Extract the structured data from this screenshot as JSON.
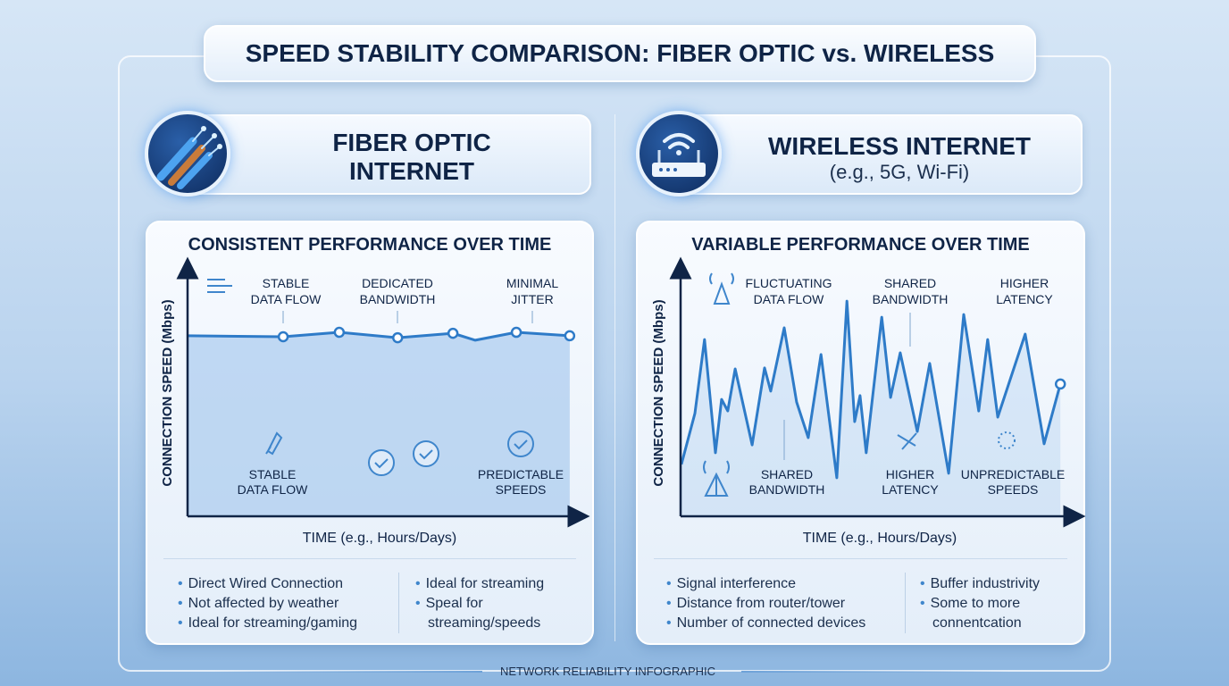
{
  "title": "SPEED STABILITY COMPARISON: FIBER OPTIC vs. WIRELESS",
  "fiber": {
    "header_line1": "FIBER OPTIC",
    "header_line2": "INTERNET",
    "icon": "fiber-cable-icon",
    "bullets_left": [
      "Direct Wired Connection",
      "Not affected by weather",
      "Ideal for streaming/gaming"
    ],
    "bullets_right": [
      "Ideal for streaming",
      "Speal for"
    ],
    "bullets_right_cont": "streaming/speeds"
  },
  "wireless": {
    "header_line1": "WIRELESS INTERNET",
    "header_line2": "(e.g., 5G, Wi-Fi)",
    "icon": "router-wifi-icon",
    "bullets_left": [
      "Signal interference",
      "Distance from router/tower",
      "Number of connected devices"
    ],
    "bullets_right": [
      "Buffer industrivity",
      "Some to more"
    ],
    "bullets_right_cont": "connentcation"
  },
  "footer": "NETWORK RELIABILITY INFOGRAPHIC",
  "colors": {
    "line": "#2e7bc8",
    "axis": "#0f2446",
    "fill": "#a9cbee"
  },
  "chart_data": [
    {
      "type": "line",
      "title": "CONSISTENT PERFORMANCE OVER TIME",
      "xlabel": "TIME (e.g., Hours/Days)",
      "ylabel": "CONNECTION SPEED (Mbps)",
      "xlim": [
        0,
        100
      ],
      "ylim": [
        0,
        100
      ],
      "grid": false,
      "series": [
        {
          "name": "Fiber Optic",
          "x": [
            0,
            24.9,
            39.5,
            54.7,
            69.1,
            74.9,
            85.6,
            99.5
          ],
          "y": [
            72.6,
            72.2,
            74.0,
            71.8,
            73.6,
            70.8,
            74.0,
            72.6
          ],
          "markers": [
            false,
            true,
            true,
            true,
            true,
            false,
            true,
            true
          ]
        }
      ],
      "annotations": [
        {
          "l1": "STABLE",
          "l2": "DATA FLOW"
        },
        {
          "l1": "DEDICATED",
          "l2": "BANDWIDTH"
        },
        {
          "l1": "MINIMAL",
          "l2": "JITTER"
        },
        {
          "l1": "STABLE",
          "l2": "DATA FLOW"
        },
        {
          "l1": "PREDICTABLE",
          "l2": "SPEEDS"
        }
      ]
    },
    {
      "type": "line",
      "title": "VARIABLE PERFORMANCE OVER TIME",
      "xlabel": "TIME (e.g., Hours/Days)",
      "ylabel": "CONNECTION SPEED (Mbps)",
      "xlim": [
        0,
        100
      ],
      "ylim": [
        0,
        100
      ],
      "grid": false,
      "series": [
        {
          "name": "Wireless",
          "x": [
            0.2,
            3.7,
            6.2,
            9.0,
            10.6,
            12.2,
            14.1,
            18.5,
            21.7,
            23.3,
            26.8,
            30.0,
            33.0,
            36.3,
            40.4,
            43.0,
            45.0,
            46.4,
            48.0,
            52.0,
            54.3,
            56.8,
            61.2,
            64.4,
            69.3,
            73.2,
            77.1,
            79.4,
            82.0,
            89.1,
            94.0,
            98.2
          ],
          "y": [
            20.6,
            41.2,
            71.1,
            25.3,
            46.9,
            42.2,
            59.2,
            28.5,
            59.6,
            50.2,
            75.8,
            45.8,
            31.4,
            65.0,
            15.2,
            86.6,
            37.9,
            48.4,
            25.3,
            80.1,
            47.7,
            65.7,
            33.9,
            61.4,
            17.0,
            81.2,
            42.2,
            71.1,
            39.7,
            73.3,
            28.9,
            53.1
          ]
        }
      ],
      "annotations": [
        {
          "l1": "FLUCTUATING",
          "l2": "DATA FLOW"
        },
        {
          "l1": "SHARED",
          "l2": "BANDWIDTH"
        },
        {
          "l1": "HIGHER",
          "l2": "LATENCY"
        },
        {
          "l1": "SHARED",
          "l2": "BANDWIDTH"
        },
        {
          "l1": "HIGHER",
          "l2": "LATENCY"
        },
        {
          "l1": "UNPREDICTABLE",
          "l2": "SPEEDS"
        }
      ]
    }
  ]
}
